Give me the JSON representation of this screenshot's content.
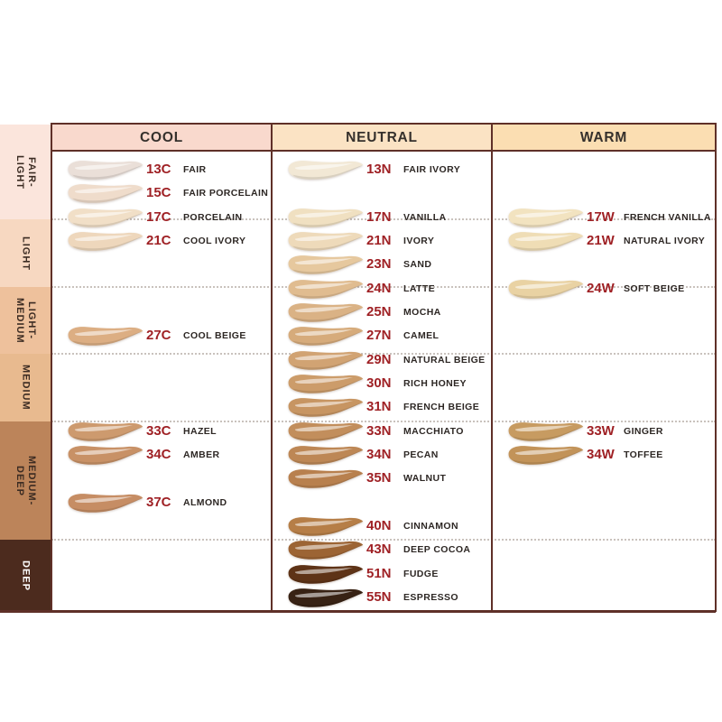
{
  "chart_data": {
    "type": "table",
    "columns": [
      {
        "key": "cool",
        "label": "COOL",
        "header_bg": "#f9d9cd",
        "shades": [
          {
            "code": "13C",
            "name": "FAIR",
            "row": 0,
            "color": "#eadfd8"
          },
          {
            "code": "15C",
            "name": "FAIR PORCELAIN",
            "row": 1,
            "color": "#efdccb"
          },
          {
            "code": "17C",
            "name": "PORCELAIN",
            "row": 2,
            "color": "#f1dfc7"
          },
          {
            "code": "21C",
            "name": "COOL IVORY",
            "row": 3,
            "color": "#eed7bc"
          },
          {
            "code": "27C",
            "name": "COOL BEIGE",
            "row": 7,
            "color": "#dcae83"
          },
          {
            "code": "33C",
            "name": "HAZEL",
            "row": 11,
            "color": "#cd9a6e"
          },
          {
            "code": "34C",
            "name": "AMBER",
            "row": 12,
            "color": "#c89166"
          },
          {
            "code": "37C",
            "name": "ALMOND",
            "row": 14,
            "color": "#c68d64"
          }
        ]
      },
      {
        "key": "neutral",
        "label": "NEUTRAL",
        "header_bg": "#fbe3c4",
        "shades": [
          {
            "code": "13N",
            "name": "FAIR IVORY",
            "row": 0,
            "color": "#f2e8d5"
          },
          {
            "code": "17N",
            "name": "VANILLA",
            "row": 2,
            "color": "#f0e0c1"
          },
          {
            "code": "21N",
            "name": "IVORY",
            "row": 3,
            "color": "#eedaba"
          },
          {
            "code": "23N",
            "name": "SAND",
            "row": 4,
            "color": "#e6c89e"
          },
          {
            "code": "24N",
            "name": "LATTE",
            "row": 5,
            "color": "#e0bc90"
          },
          {
            "code": "25N",
            "name": "MOCHA",
            "row": 6,
            "color": "#dab285"
          },
          {
            "code": "27N",
            "name": "CAMEL",
            "row": 7,
            "color": "#d6ab7b"
          },
          {
            "code": "29N",
            "name": "NATURAL BEIGE",
            "row": 8,
            "color": "#d1a373"
          },
          {
            "code": "30N",
            "name": "RICH HONEY",
            "row": 9,
            "color": "#cc9c6a"
          },
          {
            "code": "31N",
            "name": "FRENCH BEIGE",
            "row": 10,
            "color": "#c79562"
          },
          {
            "code": "33N",
            "name": "MACCHIATO",
            "row": 11,
            "color": "#c28e5c"
          },
          {
            "code": "34N",
            "name": "PECAN",
            "row": 12,
            "color": "#bd8755"
          },
          {
            "code": "35N",
            "name": "WALNUT",
            "row": 13,
            "color": "#b8804e"
          },
          {
            "code": "40N",
            "name": "CINNAMON",
            "row": 15,
            "color": "#b67e47"
          },
          {
            "code": "43N",
            "name": "DEEP COCOA",
            "row": 16,
            "color": "#9c6434"
          },
          {
            "code": "51N",
            "name": "FUDGE",
            "row": 17,
            "color": "#5e3317"
          },
          {
            "code": "55N",
            "name": "ESPRESSO",
            "row": 18,
            "color": "#382214"
          }
        ]
      },
      {
        "key": "warm",
        "label": "WARM",
        "header_bg": "#fbdeb2",
        "shades": [
          {
            "code": "17W",
            "name": "FRENCH VANILLA",
            "row": 2,
            "color": "#f2e3c0"
          },
          {
            "code": "21W",
            "name": "NATURAL IVORY",
            "row": 3,
            "color": "#efddb5"
          },
          {
            "code": "24W",
            "name": "SOFT BEIGE",
            "row": 5,
            "color": "#e9d2a3"
          },
          {
            "code": "33W",
            "name": "GINGER",
            "row": 11,
            "color": "#c79b61"
          },
          {
            "code": "34W",
            "name": "TOFFEE",
            "row": 12,
            "color": "#c29359"
          }
        ]
      }
    ],
    "depth_sections": [
      {
        "label": "FAIR-\nLIGHT",
        "bg": "#fbe5dc",
        "text": "#3b2b22"
      },
      {
        "label": "LIGHT",
        "bg": "#f7d8c1",
        "text": "#3b2b22"
      },
      {
        "label": "LIGHT-\nMEDIUM",
        "bg": "#eec19c",
        "text": "#3b2b22"
      },
      {
        "label": "MEDIUM",
        "bg": "#e8ba8f",
        "text": "#3b2b22"
      },
      {
        "label": "MEDIUM-\nDEEP",
        "bg": "#bc845a",
        "text": "#3b2b22"
      },
      {
        "label": "DEEP",
        "bg": "#4c2b1e",
        "text": "#ffffff"
      }
    ],
    "row_slots": 19
  },
  "colors": {
    "border": "#5f3028",
    "code_text": "#9f2125",
    "name_text": "#2d2724",
    "header_text": "#35302c",
    "dotted_line": "#c9c2bd"
  }
}
